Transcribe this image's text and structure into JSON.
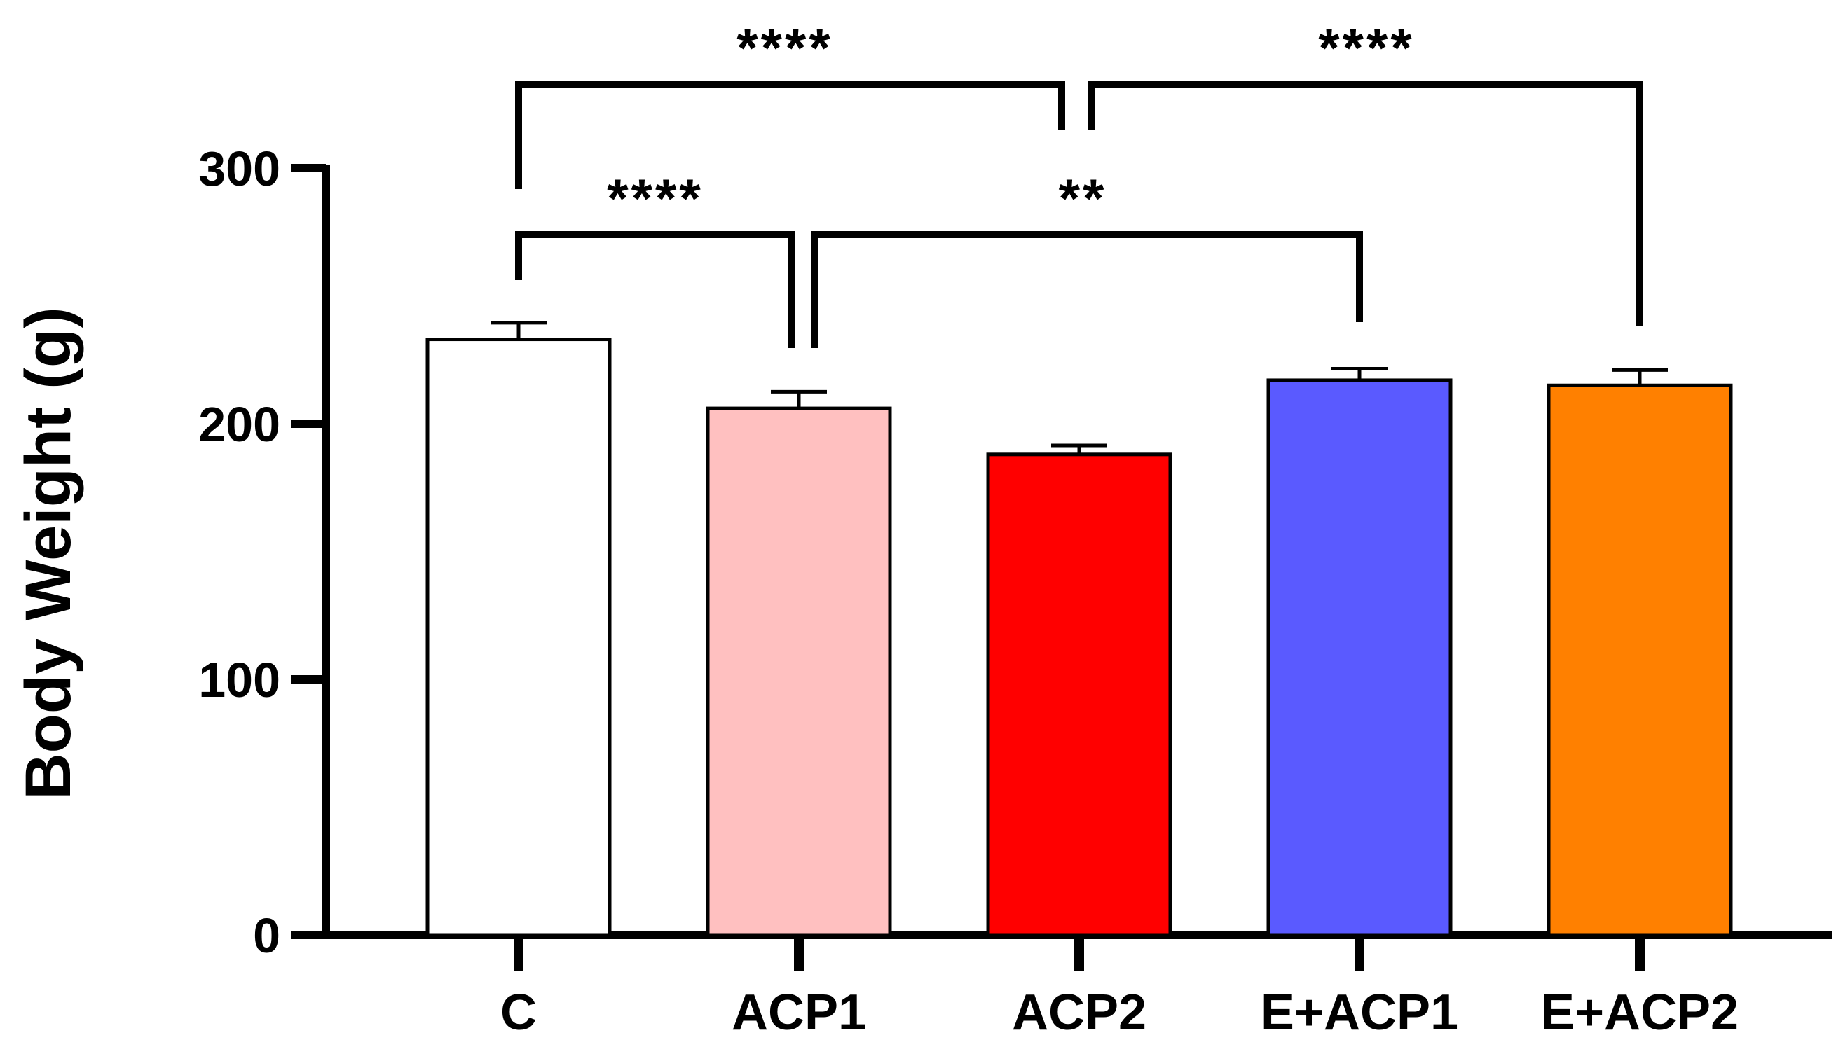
{
  "chart_data": {
    "type": "bar",
    "title": "",
    "xlabel": "",
    "ylabel": "Body Weight (g)",
    "ylim": [
      0,
      300
    ],
    "yticks": [
      0,
      100,
      200,
      300
    ],
    "ytick_labels": [
      "0",
      "100",
      "200",
      "300"
    ],
    "categories": [
      "C",
      "ACP1",
      "ACP2",
      "E+ACP1",
      "E+ACP2"
    ],
    "values": [
      233,
      206,
      188,
      217,
      215
    ],
    "errors": [
      6.5,
      6.5,
      3.5,
      4.5,
      6
    ],
    "bar_colors": [
      "#ffffff",
      "#ffc0c0",
      "#ff0000",
      "#5a5aff",
      "#ff8000"
    ],
    "axis_color": "#000000",
    "significance": [
      {
        "label": "****",
        "from": "C",
        "to": "ACP1"
      },
      {
        "label": "**",
        "from": "ACP1",
        "to": "E+ACP1"
      },
      {
        "label": "****",
        "from": "C",
        "to": "ACP2"
      },
      {
        "label": "****",
        "from": "ACP2",
        "to": "E+ACP2"
      }
    ]
  }
}
